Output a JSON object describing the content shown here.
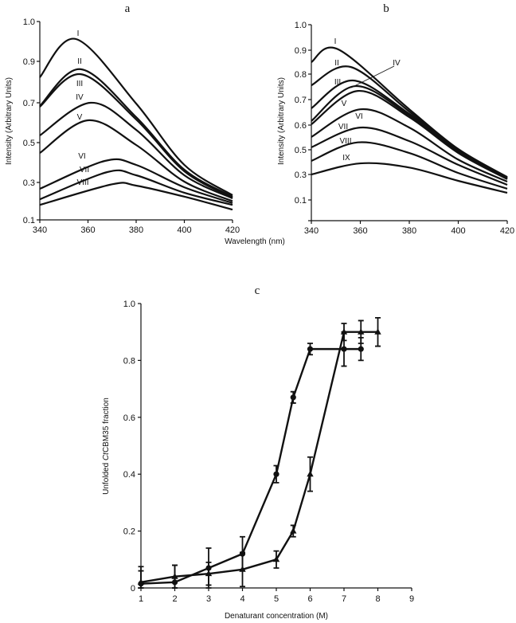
{
  "chart_data": [
    {
      "panel": "a",
      "type": "line",
      "xlabel": "Wavelength (nm)",
      "ylabel": "Intensity (Arbitrary Units)",
      "xlim": [
        340,
        420
      ],
      "xticks": [
        "340",
        "360",
        "380",
        "400",
        "420"
      ],
      "yticks": [
        "1.0",
        "0.9",
        "0.7",
        "0.5",
        "0.3",
        "0.1"
      ],
      "x": [
        340,
        "peak",
        380,
        400,
        420
      ],
      "series": [
        {
          "name": "I",
          "peak_x": 355,
          "values": [
            0.823,
            0.956,
            0.696,
            0.388,
            0.232
          ]
        },
        {
          "name": "II",
          "peak_x": 357,
          "values": [
            0.684,
            0.862,
            0.628,
            0.364,
            0.224
          ]
        },
        {
          "name": "III",
          "peak_x": 357,
          "values": [
            0.68,
            0.838,
            0.616,
            0.356,
            0.22
          ]
        },
        {
          "name": "IV",
          "peak_x": 361,
          "values": [
            0.536,
            0.7,
            0.564,
            0.336,
            0.215
          ]
        },
        {
          "name": "V",
          "peak_x": 360,
          "values": [
            0.448,
            0.612,
            0.488,
            0.304,
            0.2
          ]
        },
        {
          "name": "VI",
          "peak_x": 367,
          "values": [
            0.266,
            0.408,
            0.388,
            0.274,
            0.19
          ]
        },
        {
          "name": "VII",
          "peak_x": 368,
          "values": [
            0.21,
            0.352,
            0.336,
            0.245,
            0.18
          ]
        },
        {
          "name": "VIII",
          "peak_x": 370,
          "values": [
            0.18,
            0.29,
            0.283,
            0.224,
            0.155
          ]
        }
      ]
    },
    {
      "panel": "b",
      "type": "line",
      "xlabel": "Wavelength (nm)",
      "ylabel": "Intensity (Arbitrary Units)",
      "xlim": [
        340,
        420
      ],
      "xticks": [
        "340",
        "360",
        "380",
        "400",
        "420"
      ],
      "yticks": [
        "1.0",
        "0.9",
        "0.8",
        "0.7",
        "0.6",
        "0.5",
        "0.3",
        "0.1",
        ""
      ],
      "x": [
        340,
        "peak",
        380,
        400,
        420
      ],
      "series": [
        {
          "name": "I",
          "peak_x": 351,
          "values": [
            0.85,
            0.903,
            0.662,
            0.503,
            0.28
          ]
        },
        {
          "name": "II",
          "peak_x": 356,
          "values": [
            0.756,
            0.83,
            0.653,
            0.5,
            0.275
          ]
        },
        {
          "name": "III",
          "peak_x": 357,
          "values": [
            0.666,
            0.775,
            0.644,
            0.487,
            0.27
          ]
        },
        {
          "name": "IV",
          "peak_x": 358,
          "values": [
            0.616,
            0.753,
            0.638,
            0.48,
            0.268
          ]
        },
        {
          "name": "V",
          "peak_x": 359,
          "values": [
            0.603,
            0.734,
            0.631,
            0.474,
            0.263
          ]
        },
        {
          "name": "VI",
          "peak_x": 360,
          "values": [
            0.552,
            0.662,
            0.59,
            0.42,
            0.244
          ]
        },
        {
          "name": "VII",
          "peak_x": 360,
          "values": [
            0.51,
            0.59,
            0.535,
            0.378,
            0.219
          ]
        },
        {
          "name": "VIII",
          "peak_x": 359,
          "values": [
            0.41,
            0.53,
            0.474,
            0.312,
            0.188
          ]
        },
        {
          "name": "IX",
          "peak_x": 360,
          "values": [
            0.3,
            0.39,
            0.356,
            0.25,
            0.156
          ],
          "color": "#555555"
        }
      ]
    },
    {
      "panel": "c",
      "type": "line",
      "xlabel": "Denaturant concentration (M)",
      "ylabel_parts": [
        "Unfolded ",
        "Ct",
        "CBM35 fraction"
      ],
      "xlim": [
        1,
        9
      ],
      "ylim": [
        0,
        1.0
      ],
      "xticks": [
        "1",
        "2",
        "3",
        "4",
        "5",
        "6",
        "7",
        "8",
        "9"
      ],
      "yticks": [
        "0",
        "0.2",
        "0.4",
        "0.6",
        "0.8",
        "1.0"
      ],
      "series": [
        {
          "marker": "circle",
          "x": [
            1,
            2,
            3,
            4,
            5,
            5.5,
            6,
            7,
            7.5
          ],
          "values": [
            0.015,
            0.02,
            0.07,
            0.12,
            0.4,
            0.67,
            0.84,
            0.84,
            0.84
          ],
          "error": [
            0.06,
            0.06,
            0.07,
            0.06,
            0.03,
            0.02,
            0.02,
            0.06,
            0.04
          ]
        },
        {
          "marker": "triangle",
          "x": [
            1,
            2,
            3,
            4,
            5,
            5.5,
            6,
            7,
            7.5,
            8
          ],
          "values": [
            0.02,
            0.04,
            0.05,
            0.065,
            0.1,
            0.2,
            0.4,
            0.9,
            0.9,
            0.9
          ],
          "error": [
            0.04,
            0.04,
            0.04,
            0.06,
            0.03,
            0.02,
            0.06,
            0.03,
            0.04,
            0.05
          ]
        }
      ]
    }
  ]
}
